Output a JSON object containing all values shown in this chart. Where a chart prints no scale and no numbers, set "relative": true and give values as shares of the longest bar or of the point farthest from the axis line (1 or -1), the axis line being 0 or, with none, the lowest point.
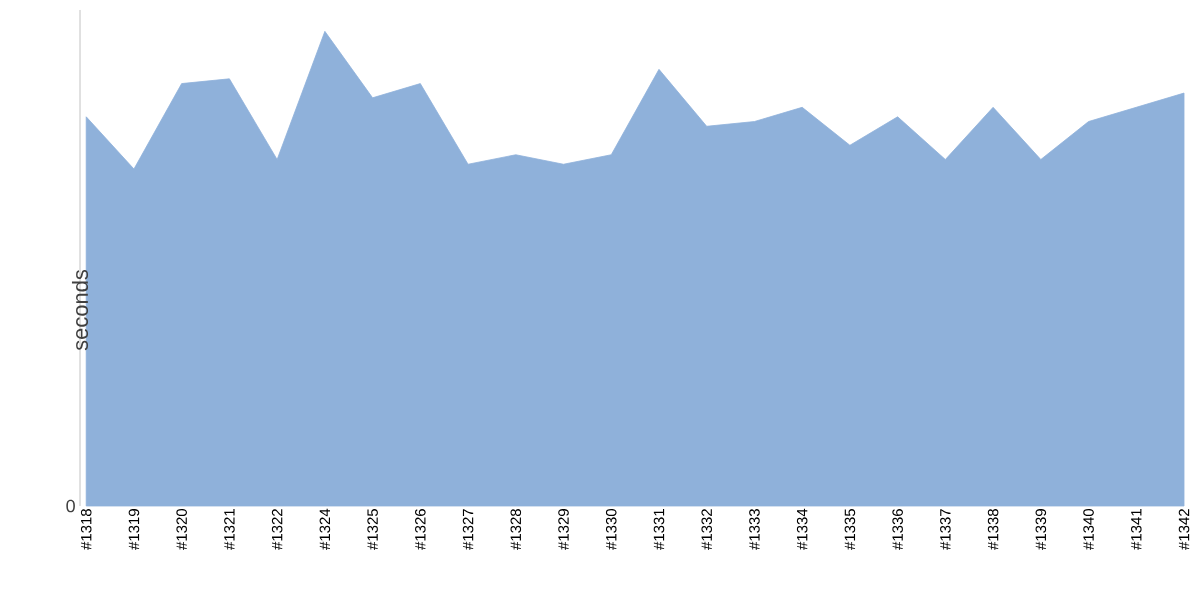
{
  "chart_data": {
    "type": "area",
    "ylabel": "seconds",
    "relative": true,
    "color": "#8fb1da",
    "annotations": [
      "0"
    ],
    "categories": [
      "#1318",
      "#1319",
      "#1320",
      "#1321",
      "#1322",
      "#1324",
      "#1325",
      "#1326",
      "#1327",
      "#1328",
      "#1329",
      "#1330",
      "#1331",
      "#1332",
      "#1333",
      "#1334",
      "#1335",
      "#1336",
      "#1337",
      "#1338",
      "#1339",
      "#1340",
      "#1341",
      "#1342"
    ],
    "values": [
      0.82,
      0.71,
      0.89,
      0.9,
      0.73,
      1.0,
      0.86,
      0.89,
      0.72,
      0.74,
      0.72,
      0.74,
      0.92,
      0.8,
      0.81,
      0.84,
      0.76,
      0.82,
      0.73,
      0.84,
      0.73,
      0.81,
      0.84,
      0.87
    ]
  }
}
